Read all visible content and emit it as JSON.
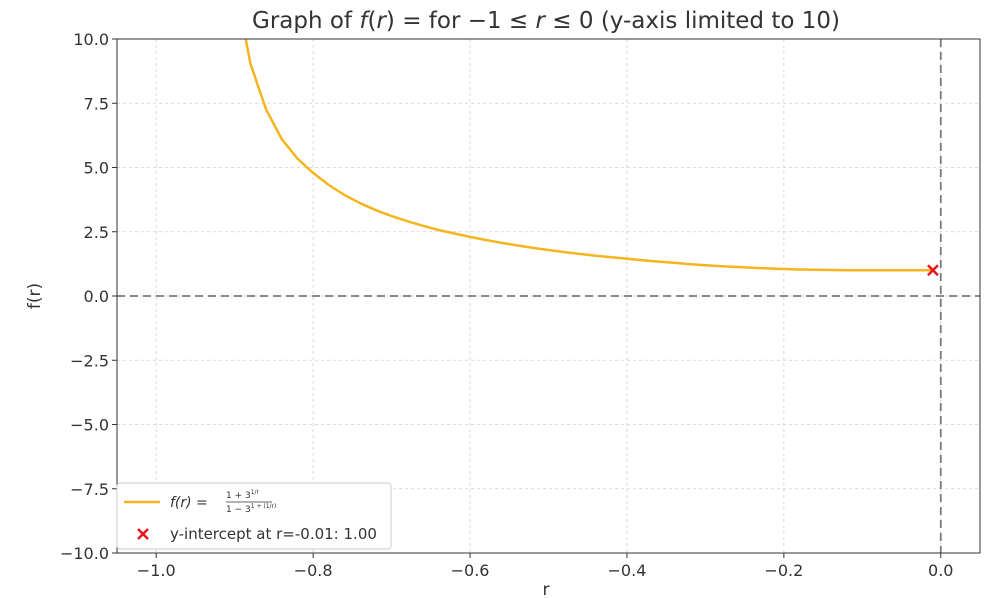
{
  "chart_data": {
    "type": "line",
    "title_parts": [
      "Graph of ",
      "f",
      "(",
      "r",
      ") = ",
      " for −1 ≤ ",
      "r",
      " ≤ 0 (y-axis limited to 10)"
    ],
    "xlabel": "r",
    "ylabel": "f(r)",
    "xlim": [
      -1.05,
      0.05
    ],
    "ylim": [
      -10,
      10
    ],
    "x_ticks": [
      -1.0,
      -0.8,
      -0.6,
      -0.4,
      -0.2,
      0.0
    ],
    "x_tick_labels": [
      "−1.0",
      "−0.8",
      "−0.6",
      "−0.4",
      "−0.2",
      "0.0"
    ],
    "y_ticks": [
      10.0,
      7.5,
      5.0,
      2.5,
      0.0,
      -2.5,
      -5.0,
      -7.5,
      -10.0
    ],
    "y_tick_labels": [
      "10.0",
      "7.5",
      "5.0",
      "2.5",
      "0.0",
      "−2.5",
      "−5.0",
      "−7.5",
      "−10.0"
    ],
    "grid": true,
    "reference_lines": {
      "horizontal_y": 0,
      "vertical_x": 0
    },
    "series": [
      {
        "name": "f(r) = (1 + 3^{1/r}) / (1 − 3^{1 + (1/r)})",
        "color": "#f5b51e",
        "x": [
          -0.886,
          -0.88,
          -0.86,
          -0.84,
          -0.82,
          -0.8,
          -0.78,
          -0.76,
          -0.74,
          -0.72,
          -0.7,
          -0.68,
          -0.66,
          -0.64,
          -0.62,
          -0.6,
          -0.58,
          -0.56,
          -0.54,
          -0.52,
          -0.5,
          -0.48,
          -0.46,
          -0.44,
          -0.42,
          -0.4,
          -0.38,
          -0.36,
          -0.34,
          -0.32,
          -0.3,
          -0.28,
          -0.26,
          -0.24,
          -0.22,
          -0.2,
          -0.18,
          -0.16,
          -0.14,
          -0.12,
          -0.1,
          -0.08,
          -0.06,
          -0.04,
          -0.02,
          -0.01
        ],
        "y": [
          10.0,
          9.04,
          7.26,
          6.1,
          5.35,
          4.79,
          4.32,
          3.93,
          3.61,
          3.34,
          3.11,
          2.91,
          2.73,
          2.57,
          2.43,
          2.3,
          2.18,
          2.07,
          1.97,
          1.87,
          1.79,
          1.71,
          1.64,
          1.57,
          1.51,
          1.45,
          1.39,
          1.34,
          1.29,
          1.24,
          1.2,
          1.16,
          1.13,
          1.1,
          1.07,
          1.05,
          1.03,
          1.02,
          1.01,
          1.005,
          1.002,
          1.0,
          1.0,
          1.0,
          1.0,
          1.0
        ]
      }
    ],
    "point": {
      "name": "y-intercept at r=-0.01: 1.00",
      "x": -0.01,
      "y": 1.0,
      "color": "#e8141b",
      "marker": "x"
    },
    "legend": {
      "placement": "lower-left",
      "formula": {
        "lhs": "f(r) = ",
        "num": "1 + 3",
        "num_sup": "1/r",
        "den": "1 − 3",
        "den_sup": "1 + (1/r)"
      },
      "point_label": "y-intercept at r=-0.01: 1.00"
    }
  }
}
